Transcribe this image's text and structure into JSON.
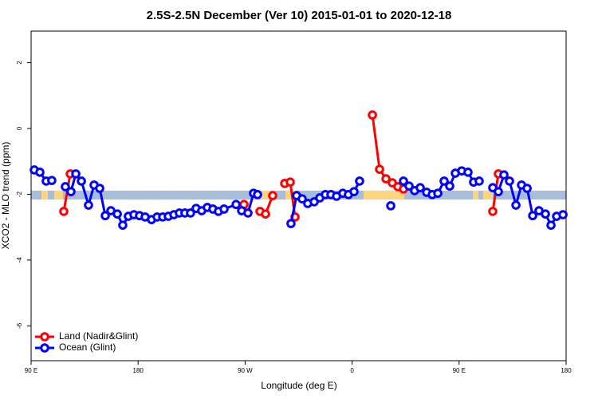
{
  "chart_data": {
    "type": "line",
    "title": "2.5S-2.5N December (Ver 10)   2015-01-01 to 2020-12-18",
    "x_label": "Longitude (deg E)",
    "y_label": "XCO2 - MLO trend (ppm)",
    "xlim": [
      90,
      540
    ],
    "xticks": [
      {
        "value": 90,
        "label": "90 E"
      },
      {
        "value": 180,
        "label": "180"
      },
      {
        "value": 270,
        "label": "90 W"
      },
      {
        "value": 360,
        "label": "0"
      },
      {
        "value": 450,
        "label": "90 E"
      },
      {
        "value": 540,
        "label": "180"
      }
    ],
    "ylim": [
      -7.06,
      2.96
    ],
    "yticks": [
      -6,
      -4,
      -2,
      0,
      2
    ],
    "band": {
      "ylim": [
        -2.16,
        -1.89
      ],
      "color": "#a6bddb",
      "land_color": "#fdd57e",
      "land_regions": [
        [
          98.7,
          104.1
        ],
        [
          109.5,
          116.8
        ],
        [
          283.2,
          295.2
        ],
        [
          304,
          312
        ],
        [
          369.7,
          403.9
        ],
        [
          461.6,
          466.3
        ],
        [
          470.3,
          478.3
        ]
      ]
    },
    "legend": "bottom-left",
    "series": [
      {
        "name": "Land (Nadir&Glint)",
        "color": "#ff0000",
        "x": [
          117.5,
          122.9,
          null,
          269.1,
          null,
          282.5,
          287.2,
          293.2,
          null,
          303.3,
          308.0,
          312.0,
          null,
          377.1,
          383.1,
          388.5,
          393.8,
          398.5,
          403.2,
          null,
          478.3,
          483.0
        ],
        "values": [
          -2.52,
          -1.38,
          null,
          -2.31,
          null,
          -2.52,
          -2.6,
          -2.04,
          null,
          -1.67,
          -1.63,
          -2.69,
          null,
          0.41,
          -1.24,
          -1.53,
          -1.65,
          -1.77,
          -1.84,
          null,
          -2.52,
          -1.38
        ]
      },
      {
        "name": "Ocean (Glint)",
        "color": "#0000ff",
        "x": [
          92.7,
          97.4,
          102.7,
          107.4,
          null,
          118.8,
          123.5,
          127.6,
          132.3,
          138.3,
          143.0,
          147.7,
          152.4,
          157.1,
          162.5,
          167.1,
          171.8,
          176.5,
          181.2,
          185.9,
          191.3,
          196.0,
          200.7,
          205.4,
          210.1,
          214.7,
          219.4,
          224.1,
          228.8,
          233.5,
          238.2,
          242.9,
          247.6,
          252.3,
          262.4,
          267.1,
          272.4,
          277.1,
          280.5,
          null,
          308.6,
          313.3,
          318.0,
          322.7,
          328.1,
          332.8,
          337.5,
          342.2,
          346.9,
          352.2,
          356.9,
          361.6,
          366.3,
          null,
          392.5,
          null,
          403.2,
          407.9,
          412.6,
          417.3,
          422.7,
          427.4,
          432.1,
          437.4,
          442.1,
          446.8,
          452.2,
          457.5,
          462.2,
          466.9,
          null,
          478.3,
          483.0,
          487.7,
          492.4,
          497.8,
          502.5,
          507.2,
          511.9,
          517.2,
          522.6,
          527.3,
          532.0,
          537.4
        ],
        "values": [
          -1.26,
          -1.33,
          -1.6,
          -1.58,
          null,
          -1.77,
          -1.92,
          -1.38,
          -1.6,
          -2.33,
          -1.72,
          -1.82,
          -2.65,
          -2.5,
          -2.6,
          -2.94,
          -2.67,
          -2.62,
          -2.65,
          -2.69,
          -2.77,
          -2.69,
          -2.69,
          -2.67,
          -2.62,
          -2.57,
          -2.57,
          -2.57,
          -2.43,
          -2.5,
          -2.4,
          -2.45,
          -2.52,
          -2.45,
          -2.31,
          -2.5,
          -2.57,
          -1.97,
          -2.01,
          null,
          -2.89,
          -2.04,
          -2.14,
          -2.28,
          -2.23,
          -2.11,
          -2.01,
          -2.01,
          -2.06,
          -1.97,
          -2.01,
          -1.92,
          -1.6,
          null,
          -2.35,
          null,
          -1.6,
          -1.75,
          -1.89,
          -1.8,
          -1.94,
          -2.01,
          -1.97,
          -1.6,
          -1.75,
          -1.36,
          -1.29,
          -1.33,
          -1.63,
          -1.6,
          null,
          -1.8,
          -1.92,
          -1.41,
          -1.6,
          -2.33,
          -1.72,
          -1.82,
          -2.65,
          -2.5,
          -2.6,
          -2.94,
          -2.67,
          -2.62
        ]
      }
    ]
  }
}
